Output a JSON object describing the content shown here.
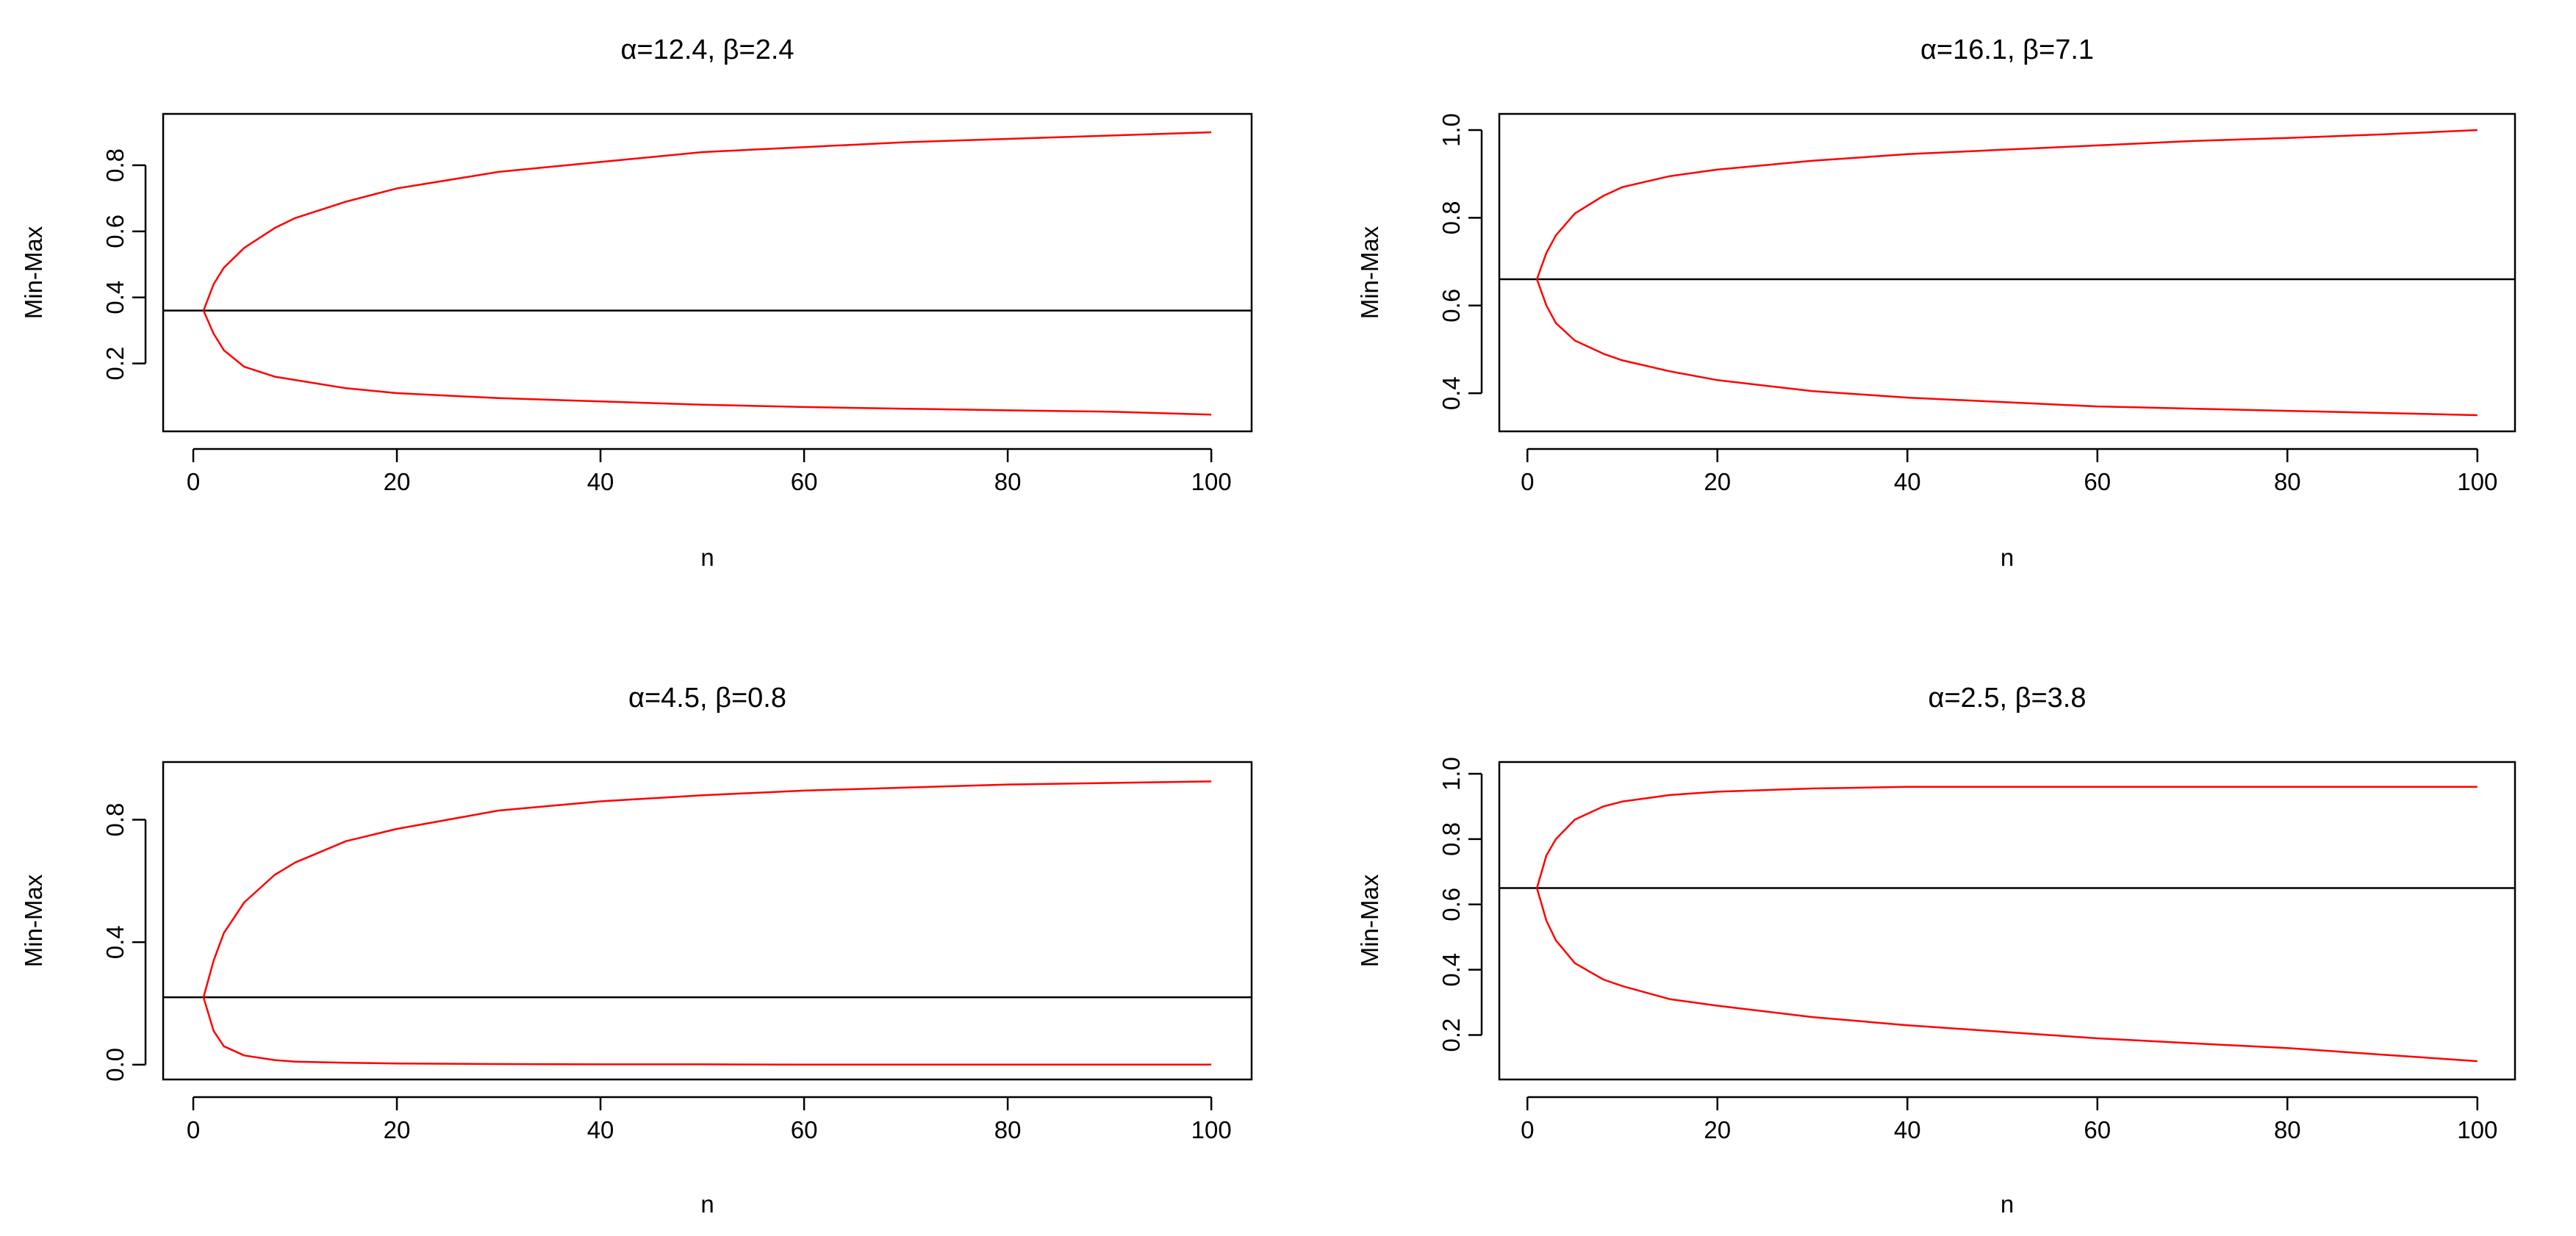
{
  "chart_data": [
    {
      "type": "line",
      "title": "α=12.4, β=2.4",
      "xlabel": "n",
      "ylabel": "Min-Max",
      "xlim": [
        1,
        100
      ],
      "ylim": [
        0.03,
        0.92
      ],
      "xticks": [
        0,
        20,
        40,
        60,
        80,
        100
      ],
      "xtick_labels": [
        "0",
        "20",
        "40",
        "60",
        "80",
        "100"
      ],
      "yticks": [
        0.2,
        0.4,
        0.6,
        0.8
      ],
      "ytick_labels": [
        "0.2",
        "0.4",
        "0.6",
        "0.8"
      ],
      "hline": 0.36,
      "line_color": "#ff0000",
      "hline_color": "#000000",
      "x": [
        1,
        2,
        3,
        5,
        8,
        10,
        15,
        20,
        30,
        40,
        50,
        60,
        70,
        80,
        90,
        100
      ],
      "series": [
        {
          "values": [
            0.36,
            0.44,
            0.49,
            0.55,
            0.61,
            0.64,
            0.69,
            0.73,
            0.78,
            0.81,
            0.84,
            0.855,
            0.87,
            0.88,
            0.89,
            0.9
          ]
        },
        {
          "values": [
            0.36,
            0.29,
            0.24,
            0.19,
            0.16,
            0.15,
            0.125,
            0.11,
            0.095,
            0.085,
            0.075,
            0.068,
            0.063,
            0.058,
            0.054,
            0.045
          ]
        }
      ]
    },
    {
      "type": "line",
      "title": "α=16.1, β=7.1",
      "xlabel": "n",
      "ylabel": "Min-Max",
      "xlim": [
        1,
        100
      ],
      "ylim": [
        0.34,
        1.01
      ],
      "xticks": [
        0,
        20,
        40,
        60,
        80,
        100
      ],
      "xtick_labels": [
        "0",
        "20",
        "40",
        "60",
        "80",
        "100"
      ],
      "yticks": [
        0.4,
        0.6,
        0.8,
        1.0
      ],
      "ytick_labels": [
        "0.4",
        "0.6",
        "0.8",
        "1.0"
      ],
      "hline": 0.66,
      "line_color": "#ff0000",
      "hline_color": "#000000",
      "x": [
        1,
        2,
        3,
        5,
        8,
        10,
        15,
        20,
        30,
        40,
        50,
        60,
        70,
        80,
        90,
        100
      ],
      "series": [
        {
          "values": [
            0.66,
            0.72,
            0.76,
            0.81,
            0.85,
            0.87,
            0.895,
            0.91,
            0.93,
            0.945,
            0.955,
            0.965,
            0.975,
            0.982,
            0.99,
            1.0
          ]
        },
        {
          "values": [
            0.66,
            0.6,
            0.56,
            0.52,
            0.49,
            0.475,
            0.45,
            0.43,
            0.405,
            0.39,
            0.38,
            0.37,
            0.365,
            0.36,
            0.355,
            0.35
          ]
        }
      ]
    },
    {
      "type": "line",
      "title": "α=4.5, β=0.8",
      "xlabel": "n",
      "ylabel": "Min-Max",
      "xlim": [
        1,
        100
      ],
      "ylim": [
        -0.01,
        0.95
      ],
      "xticks": [
        0,
        20,
        40,
        60,
        80,
        100
      ],
      "xtick_labels": [
        "0",
        "20",
        "40",
        "60",
        "80",
        "100"
      ],
      "yticks": [
        0.0,
        0.4,
        0.8
      ],
      "ytick_labels": [
        "0.0",
        "0.4",
        "0.8"
      ],
      "hline": 0.22,
      "line_color": "#ff0000",
      "hline_color": "#000000",
      "x": [
        1,
        2,
        3,
        5,
        8,
        10,
        15,
        20,
        30,
        40,
        50,
        60,
        70,
        80,
        90,
        100
      ],
      "series": [
        {
          "values": [
            0.22,
            0.34,
            0.43,
            0.53,
            0.62,
            0.66,
            0.73,
            0.77,
            0.83,
            0.86,
            0.88,
            0.895,
            0.905,
            0.915,
            0.92,
            0.925
          ]
        },
        {
          "values": [
            0.22,
            0.11,
            0.06,
            0.03,
            0.015,
            0.01,
            0.006,
            0.004,
            0.002,
            0.001,
            0.001,
            0.0,
            0.0,
            0.0,
            0.0,
            0.0
          ]
        }
      ]
    },
    {
      "type": "line",
      "title": "α=2.5, β=3.8",
      "xlabel": "n",
      "ylabel": "Min-Max",
      "xlim": [
        1,
        100
      ],
      "ylim": [
        0.1,
        1.0
      ],
      "xticks": [
        0,
        20,
        40,
        60,
        80,
        100
      ],
      "xtick_labels": [
        "0",
        "20",
        "40",
        "60",
        "80",
        "100"
      ],
      "yticks": [
        0.2,
        0.4,
        0.6,
        0.8,
        1.0
      ],
      "ytick_labels": [
        "0.2",
        "0.4",
        "0.6",
        "0.8",
        "1.0"
      ],
      "hline": 0.65,
      "line_color": "#ff0000",
      "hline_color": "#000000",
      "x": [
        1,
        2,
        3,
        5,
        8,
        10,
        15,
        20,
        30,
        40,
        50,
        60,
        70,
        80,
        90,
        100
      ],
      "series": [
        {
          "values": [
            0.65,
            0.75,
            0.8,
            0.86,
            0.9,
            0.915,
            0.935,
            0.945,
            0.955,
            0.96,
            0.96,
            0.96,
            0.96,
            0.96,
            0.96,
            0.96
          ]
        },
        {
          "values": [
            0.65,
            0.55,
            0.49,
            0.42,
            0.37,
            0.35,
            0.31,
            0.29,
            0.255,
            0.23,
            0.21,
            0.19,
            0.175,
            0.16,
            0.14,
            0.12
          ]
        }
      ]
    }
  ]
}
